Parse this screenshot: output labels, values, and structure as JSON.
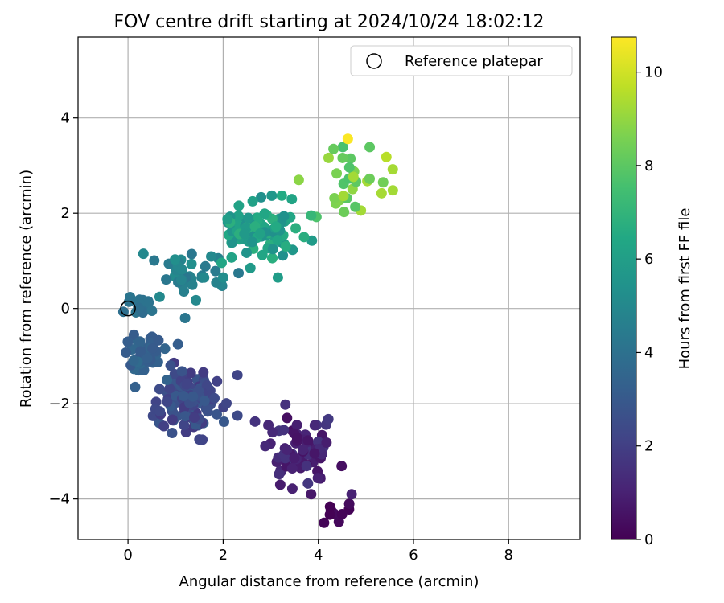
{
  "chart_data": {
    "type": "scatter",
    "title": "FOV centre drift starting at 2024/10/24 18:02:12",
    "xlabel": "Angular distance from reference (arcmin)",
    "ylabel": "Rotation from reference (arcmin)",
    "xlim": [
      -1.05,
      9.5
    ],
    "ylim": [
      -4.85,
      5.7
    ],
    "xticks": [
      0,
      2,
      4,
      6,
      8
    ],
    "yticks": [
      -4,
      -2,
      0,
      2,
      4
    ],
    "grid": true,
    "legend": {
      "position": "top-right",
      "entries": [
        {
          "label": "Reference platepar",
          "marker": "open-circle",
          "x": 0,
          "y": 0
        }
      ]
    },
    "colorbar": {
      "label": "Hours from first FF file",
      "colormap": "viridis",
      "range": [
        0,
        10.75
      ],
      "ticks": [
        0,
        2,
        4,
        6,
        8,
        10
      ]
    },
    "series": [
      {
        "clusters": [
          {
            "cx": 4.35,
            "cy": -4.3,
            "n": 9,
            "sx": 0.15,
            "sy": 0.12,
            "h0": 0.0,
            "h1": 0.35
          },
          {
            "cx": 3.7,
            "cy": -3.0,
            "n": 75,
            "sx": 0.38,
            "sy": 0.36,
            "h0": 0.35,
            "h1": 1.8
          },
          {
            "cx": 1.25,
            "cy": -1.95,
            "n": 120,
            "sx": 0.3,
            "sy": 0.34,
            "h0": 1.8,
            "h1": 3.0
          },
          {
            "cx": 0.3,
            "cy": -0.9,
            "n": 45,
            "sx": 0.2,
            "sy": 0.3,
            "h0": 3.0,
            "h1": 3.8
          },
          {
            "cx": 0.25,
            "cy": 0.05,
            "n": 20,
            "sx": 0.15,
            "sy": 0.1,
            "h0": 3.8,
            "h1": 4.2
          },
          {
            "cx": 1.3,
            "cy": 0.75,
            "n": 35,
            "sx": 0.45,
            "sy": 0.3,
            "h0": 4.2,
            "h1": 5.3
          },
          {
            "cx": 2.75,
            "cy": 1.65,
            "n": 95,
            "sx": 0.4,
            "sy": 0.28,
            "h0": 5.3,
            "h1": 6.8
          },
          {
            "cx": 4.7,
            "cy": 2.75,
            "n": 28,
            "sx": 0.4,
            "sy": 0.38,
            "h0": 7.5,
            "h1": 9.3
          }
        ]
      },
      {
        "points": [
          [
            0.0,
            0.0,
            4.0
          ],
          [
            4.62,
            3.56,
            10.7
          ],
          [
            5.43,
            3.18,
            9.6
          ],
          [
            5.33,
            2.42,
            9.3
          ],
          [
            3.15,
            0.65,
            5.9
          ],
          [
            2.62,
            2.25,
            6.1
          ],
          [
            3.85,
            1.95,
            7.1
          ],
          [
            3.7,
            1.5,
            6.7
          ],
          [
            3.2,
            -3.7,
            0.8
          ],
          [
            3.85,
            -3.9,
            0.7
          ],
          [
            4.65,
            -4.1,
            0.3
          ],
          [
            2.95,
            -2.45,
            1.2
          ],
          [
            2.3,
            -1.4,
            2.2
          ],
          [
            2.3,
            -2.25,
            2.4
          ],
          [
            1.05,
            -0.75,
            3.2
          ],
          [
            0.82,
            -1.5,
            3.4
          ],
          [
            0.15,
            -1.65,
            3.3
          ],
          [
            1.2,
            -0.2,
            4.2
          ],
          [
            1.12,
            0.6,
            4.8
          ],
          [
            1.6,
            0.65,
            5.0
          ],
          [
            4.7,
            -3.9,
            1.0
          ],
          [
            1.5,
            -2.75,
            2.2
          ],
          [
            2.0,
            0.65,
            5.2
          ],
          [
            4.32,
            3.35,
            8.2
          ]
        ]
      }
    ]
  }
}
